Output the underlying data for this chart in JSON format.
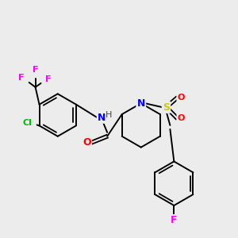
{
  "background_color": "#ececec",
  "atom_colors": {
    "F": "#ff00ff",
    "Cl": "#00bb00",
    "N": "#0000ff",
    "O": "#ff0000",
    "S": "#cccc00"
  },
  "figsize": [
    3.0,
    3.0
  ],
  "dpi": 100
}
